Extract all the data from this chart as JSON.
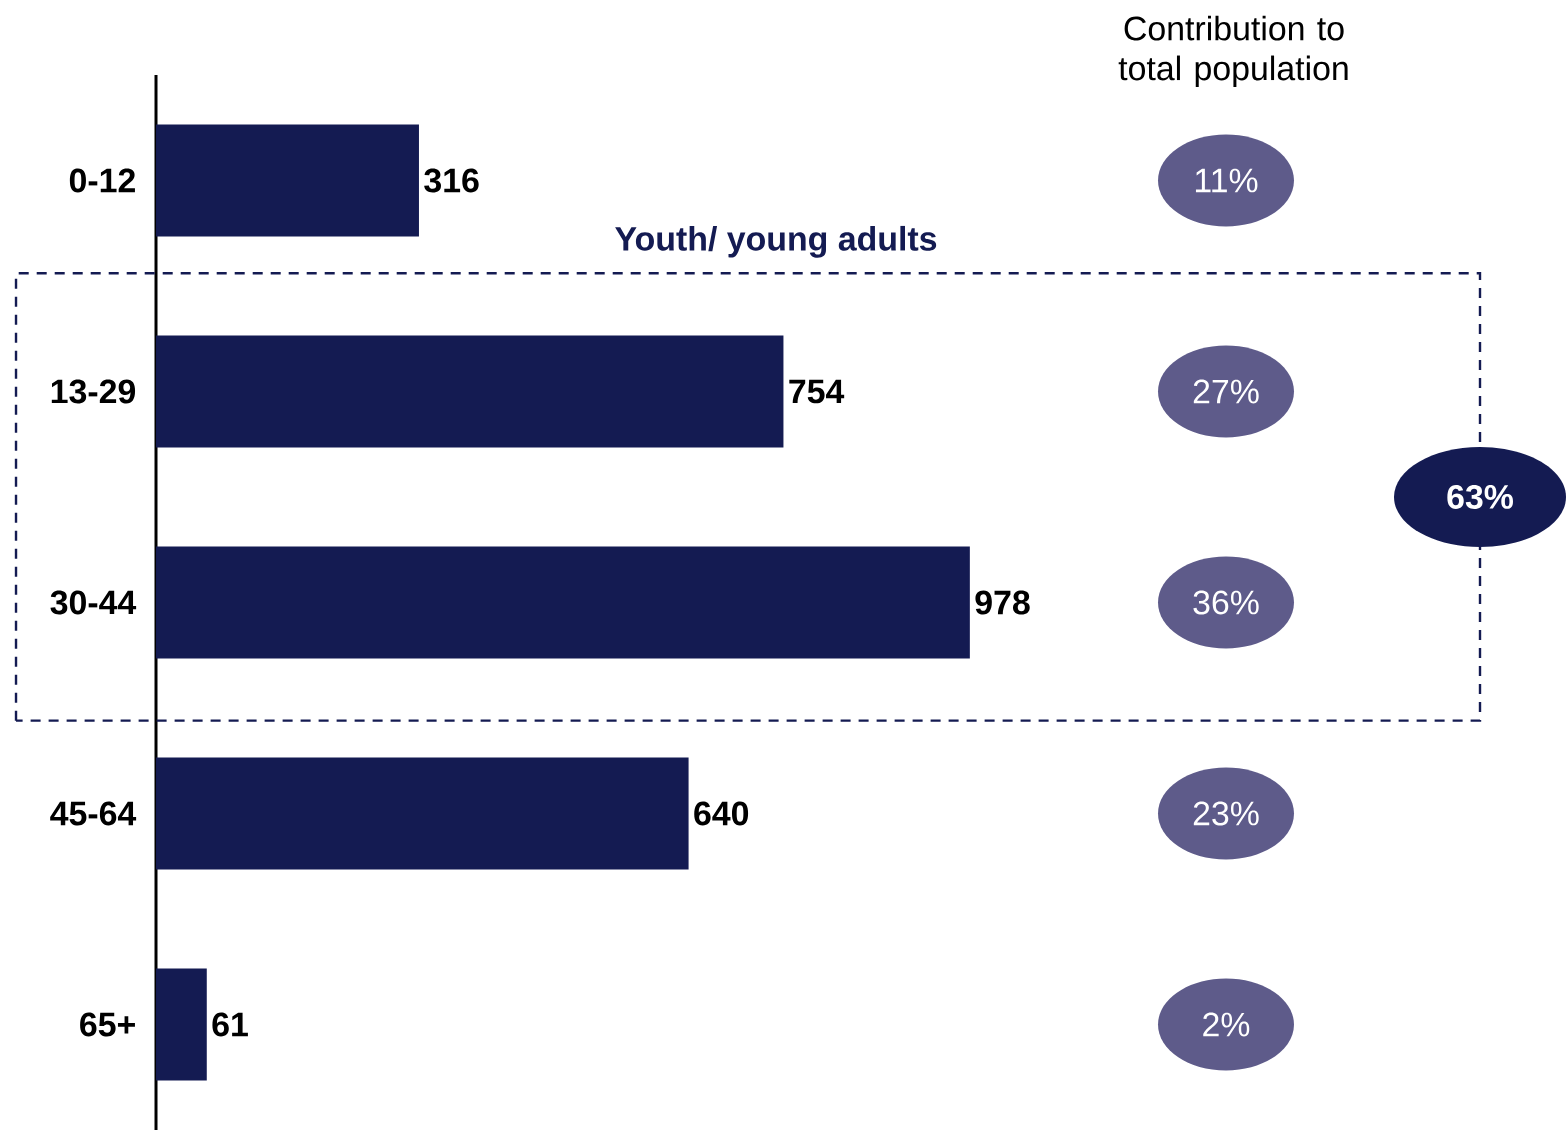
{
  "chart_data": {
    "type": "bar",
    "orientation": "horizontal",
    "categories": [
      "0-12",
      "13-29",
      "30-44",
      "45-64",
      "65+"
    ],
    "values": [
      316,
      754,
      978,
      640,
      61
    ],
    "color": "#141b52",
    "data_labels": true,
    "annotations": [
      "Contribution to total population",
      "Youth/ young adults",
      "11%",
      "27%",
      "36%",
      "23%",
      "2%",
      "63%"
    ]
  }
}
